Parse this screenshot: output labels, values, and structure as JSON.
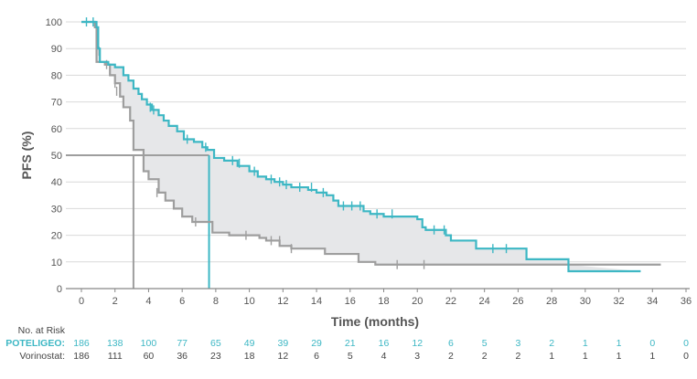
{
  "chart_data": {
    "type": "line",
    "title": "",
    "xlabel": "Time (months)",
    "ylabel": "PFS (%)",
    "xlim": [
      0,
      36
    ],
    "ylim": [
      0,
      100
    ],
    "x_ticks": [
      0,
      2,
      4,
      6,
      8,
      10,
      12,
      14,
      16,
      18,
      20,
      22,
      24,
      26,
      28,
      30,
      32,
      34,
      36
    ],
    "y_ticks": [
      0,
      10,
      20,
      30,
      40,
      50,
      60,
      70,
      80,
      90,
      100
    ],
    "grid": "horizontal",
    "median_line_y": 50,
    "series": [
      {
        "name": "POTELIGEO",
        "color": "#3db7c4",
        "steps": [
          [
            0,
            100
          ],
          [
            0.9,
            98
          ],
          [
            1,
            90
          ],
          [
            1.1,
            85
          ],
          [
            1.6,
            84
          ],
          [
            2,
            83
          ],
          [
            2.5,
            80
          ],
          [
            2.8,
            78
          ],
          [
            3.1,
            75
          ],
          [
            3.4,
            73
          ],
          [
            3.6,
            71
          ],
          [
            3.9,
            69
          ],
          [
            4.2,
            67
          ],
          [
            4.6,
            65
          ],
          [
            4.9,
            63
          ],
          [
            5.2,
            61
          ],
          [
            5.7,
            59
          ],
          [
            6.1,
            56
          ],
          [
            6.7,
            55
          ],
          [
            7.2,
            53
          ],
          [
            7.5,
            52
          ],
          [
            7.9,
            49
          ],
          [
            8.5,
            48
          ],
          [
            9.3,
            46
          ],
          [
            10,
            44
          ],
          [
            10.5,
            42
          ],
          [
            11,
            41
          ],
          [
            11.5,
            40
          ],
          [
            12,
            39
          ],
          [
            12.5,
            38
          ],
          [
            13.5,
            37
          ],
          [
            14,
            36
          ],
          [
            14.6,
            35
          ],
          [
            15,
            33
          ],
          [
            15.3,
            31
          ],
          [
            16.8,
            29
          ],
          [
            17.2,
            28
          ],
          [
            18,
            27
          ],
          [
            19,
            27
          ],
          [
            20,
            26
          ],
          [
            20.3,
            23
          ],
          [
            20.5,
            22
          ],
          [
            21.5,
            22
          ],
          [
            21.7,
            20
          ],
          [
            22,
            18
          ],
          [
            23.5,
            15
          ],
          [
            25,
            15
          ],
          [
            26.5,
            11
          ],
          [
            29,
            6.5
          ],
          [
            33.3,
            6.5
          ]
        ],
        "censor": [
          [
            0.3,
            100
          ],
          [
            0.7,
            100
          ],
          [
            4.1,
            68
          ],
          [
            4.3,
            67
          ],
          [
            6.3,
            56
          ],
          [
            7.4,
            53
          ],
          [
            9,
            48
          ],
          [
            9.4,
            47
          ],
          [
            10.3,
            44
          ],
          [
            11.3,
            41
          ],
          [
            11.8,
            40
          ],
          [
            12.2,
            39
          ],
          [
            13,
            38
          ],
          [
            13.7,
            38
          ],
          [
            14.4,
            36
          ],
          [
            15.6,
            31
          ],
          [
            16.1,
            31
          ],
          [
            16.6,
            31
          ],
          [
            17.6,
            28
          ],
          [
            18.5,
            28
          ],
          [
            21,
            22
          ],
          [
            21.6,
            22
          ],
          [
            24.5,
            15
          ],
          [
            25.3,
            15
          ]
        ]
      },
      {
        "name": "Vorinostat",
        "color": "#9e9e9e",
        "steps": [
          [
            0,
            100
          ],
          [
            0.8,
            98
          ],
          [
            0.9,
            85
          ],
          [
            1.4,
            84
          ],
          [
            1.7,
            80
          ],
          [
            2,
            77
          ],
          [
            2.3,
            72
          ],
          [
            2.5,
            68
          ],
          [
            2.9,
            63
          ],
          [
            3.1,
            52
          ],
          [
            3.6,
            52
          ],
          [
            3.7,
            44
          ],
          [
            4,
            41
          ],
          [
            4.6,
            36
          ],
          [
            5,
            33
          ],
          [
            5.5,
            30
          ],
          [
            6,
            27
          ],
          [
            6.6,
            25
          ],
          [
            7.4,
            25
          ],
          [
            7.8,
            21
          ],
          [
            8.8,
            20
          ],
          [
            10.6,
            19
          ],
          [
            11,
            18
          ],
          [
            11.8,
            16
          ],
          [
            12.5,
            15
          ],
          [
            14.5,
            13
          ],
          [
            16.5,
            10
          ],
          [
            17.5,
            9
          ],
          [
            18.5,
            9
          ],
          [
            20.5,
            9
          ],
          [
            21,
            9
          ],
          [
            29,
            9
          ],
          [
            34.5,
            9
          ]
        ],
        "censor": [
          [
            1,
            92
          ],
          [
            1.05,
            89
          ],
          [
            1.1,
            87
          ],
          [
            1.5,
            84
          ],
          [
            2,
            77
          ],
          [
            2.1,
            74
          ],
          [
            4.5,
            36
          ],
          [
            6.8,
            25
          ],
          [
            9.8,
            20
          ],
          [
            11.3,
            18
          ],
          [
            11.8,
            18
          ],
          [
            12.5,
            15
          ],
          [
            18.8,
            9
          ],
          [
            20.4,
            9
          ]
        ]
      }
    ],
    "median_drop": [
      {
        "series": "Vorinostat",
        "x": 3.1
      },
      {
        "series": "POTELIGEO",
        "x": 7.6
      }
    ],
    "risk_table": {
      "header": "No. at Risk",
      "rows": [
        {
          "label": "POTELIGEO:",
          "color": "#3db7c4",
          "values": [
            "186",
            "138",
            "100",
            "77",
            "65",
            "49",
            "39",
            "29",
            "21",
            "16",
            "12",
            "6",
            "5",
            "3",
            "2",
            "1",
            "1",
            "0",
            "0"
          ]
        },
        {
          "label": "Vorinostat:",
          "color": "#444444",
          "values": [
            "186",
            "111",
            "60",
            "36",
            "23",
            "18",
            "12",
            "6",
            "5",
            "4",
            "3",
            "2",
            "2",
            "2",
            "1",
            "1",
            "1",
            "1",
            "0"
          ]
        }
      ]
    }
  }
}
